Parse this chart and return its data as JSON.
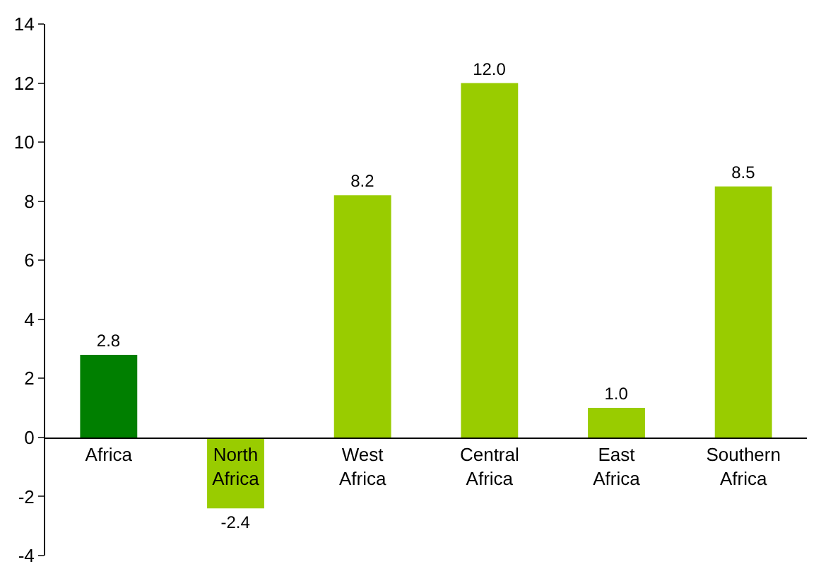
{
  "chart_data": {
    "type": "bar",
    "categories": [
      "Africa",
      "North Africa",
      "West Africa",
      "Central Africa",
      "East Africa",
      "Southern Africa"
    ],
    "values": [
      2.8,
      -2.4,
      8.2,
      12.0,
      1.0,
      8.5
    ],
    "colors": [
      "#007f00",
      "#99cc00",
      "#99cc00",
      "#99cc00",
      "#99cc00",
      "#99cc00"
    ],
    "value_labels": [
      "2.8",
      "-2.4",
      "8.2",
      "12.0",
      "1.0",
      "8.5"
    ],
    "ylim": [
      -4,
      14
    ],
    "yticks": [
      -4,
      -2,
      0,
      2,
      4,
      6,
      8,
      10,
      12,
      14
    ]
  }
}
